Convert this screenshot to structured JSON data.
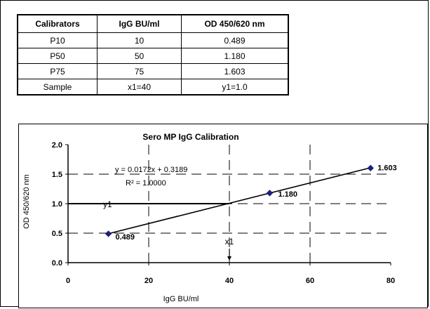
{
  "table": {
    "headers": [
      "Calibrators",
      "IgG BU/ml",
      "OD 450/620 nm"
    ],
    "rows": [
      [
        "P10",
        "10",
        "0.489"
      ],
      [
        "P50",
        "50",
        "1.180"
      ],
      [
        "P75",
        "75",
        "1.603"
      ],
      [
        "Sample",
        "x1=40",
        "y1=1.0"
      ]
    ]
  },
  "chart_data": {
    "type": "scatter",
    "title": "Sero MP IgG Calibration",
    "xlabel": "IgG BU/ml",
    "ylabel": "OD 450/620 nm",
    "xlim": [
      0,
      80
    ],
    "ylim": [
      0,
      2.0
    ],
    "x_ticks": [
      "0",
      "20",
      "40",
      "60",
      "80"
    ],
    "y_ticks": [
      "0.0",
      "0.5",
      "1.0",
      "1.5",
      "2.0"
    ],
    "series": [
      {
        "x": [
          10,
          50,
          75
        ],
        "y": [
          0.489,
          1.18,
          1.603
        ],
        "color": "#1f1f7a"
      }
    ],
    "trendline": {
      "slope": 0.0172,
      "intercept": 0.3189
    },
    "equation": "y = 0.0172x + 0.3189",
    "r_squared": "R² = 1.0000",
    "point_labels": [
      "0.489",
      "1.180",
      "1.603"
    ],
    "sample": {
      "x": 40,
      "y": 1.0,
      "x_label": "x1",
      "y_label": "y1"
    },
    "grid": true,
    "legend": "none"
  }
}
